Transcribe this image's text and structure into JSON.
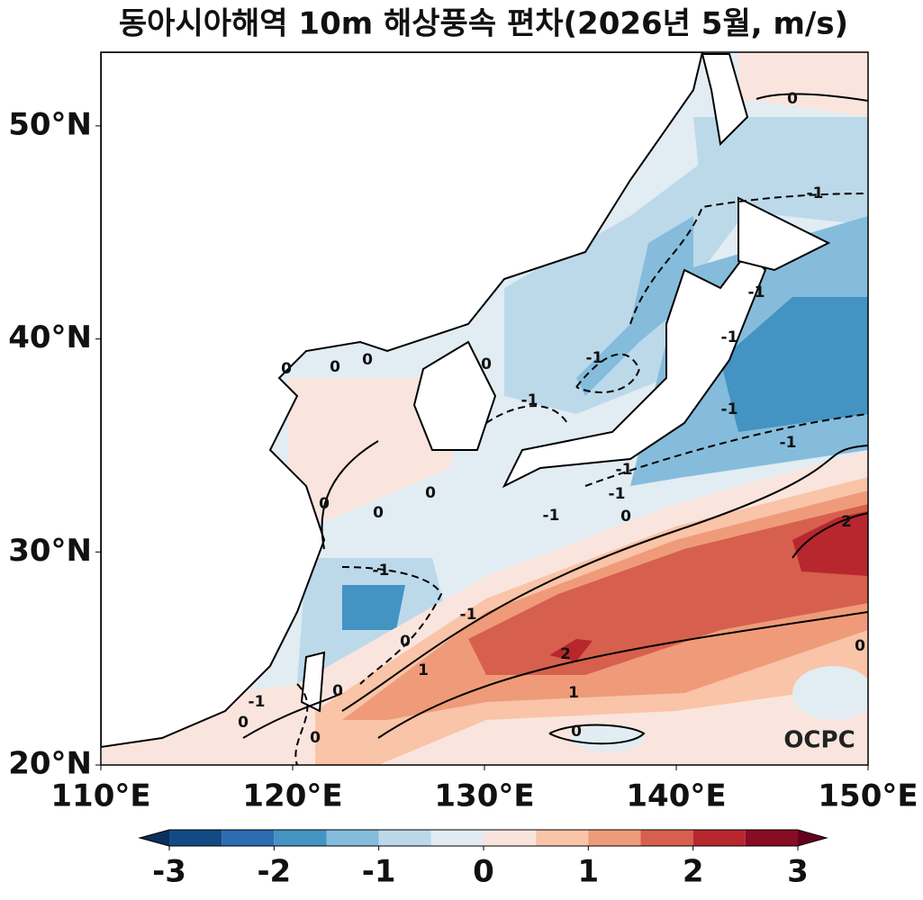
{
  "title": "동아시아해역 10m 해상풍속 편차(2026년 5월, m/s)",
  "map": {
    "xlim": [
      110,
      150
    ],
    "ylim": [
      20,
      53.46
    ],
    "xticks": [
      {
        "value": 110,
        "label": "110°E"
      },
      {
        "value": 120,
        "label": "120°E"
      },
      {
        "value": 130,
        "label": "130°E"
      },
      {
        "value": 140,
        "label": "140°E"
      },
      {
        "value": 150,
        "label": "150°E"
      }
    ],
    "yticks": [
      {
        "value": 20,
        "label": "20°N"
      },
      {
        "value": 30,
        "label": "30°N"
      },
      {
        "value": 40,
        "label": "40°N"
      },
      {
        "value": 50,
        "label": "50°N"
      }
    ],
    "contour_labels": [
      0,
      -1,
      -1,
      -1,
      -1,
      -1,
      -1,
      0,
      -1,
      -1,
      -1,
      -1,
      0,
      2,
      -1,
      -1,
      0,
      2,
      0,
      1,
      1,
      0,
      0,
      0,
      -1,
      0,
      0,
      0,
      0,
      0,
      0,
      0
    ],
    "logo": "OCPC"
  },
  "colorbar": {
    "levels": [
      -3,
      -2.5,
      -2,
      -1.5,
      -1,
      -0.5,
      0,
      0.5,
      1,
      1.5,
      2,
      2.5,
      3
    ],
    "colors": [
      "#134a84",
      "#2b6cb3",
      "#4393c3",
      "#85bcdb",
      "#bcd9ea",
      "#e1ecf3",
      "#f9e5dd",
      "#f9c4a8",
      "#ef9b7a",
      "#d6604d",
      "#b8272e",
      "#870c24"
    ],
    "extend_colors": [
      "#0b2f5c",
      "#67001f"
    ],
    "ticks": [
      -3,
      -2,
      -1,
      0,
      1,
      2,
      3
    ]
  }
}
